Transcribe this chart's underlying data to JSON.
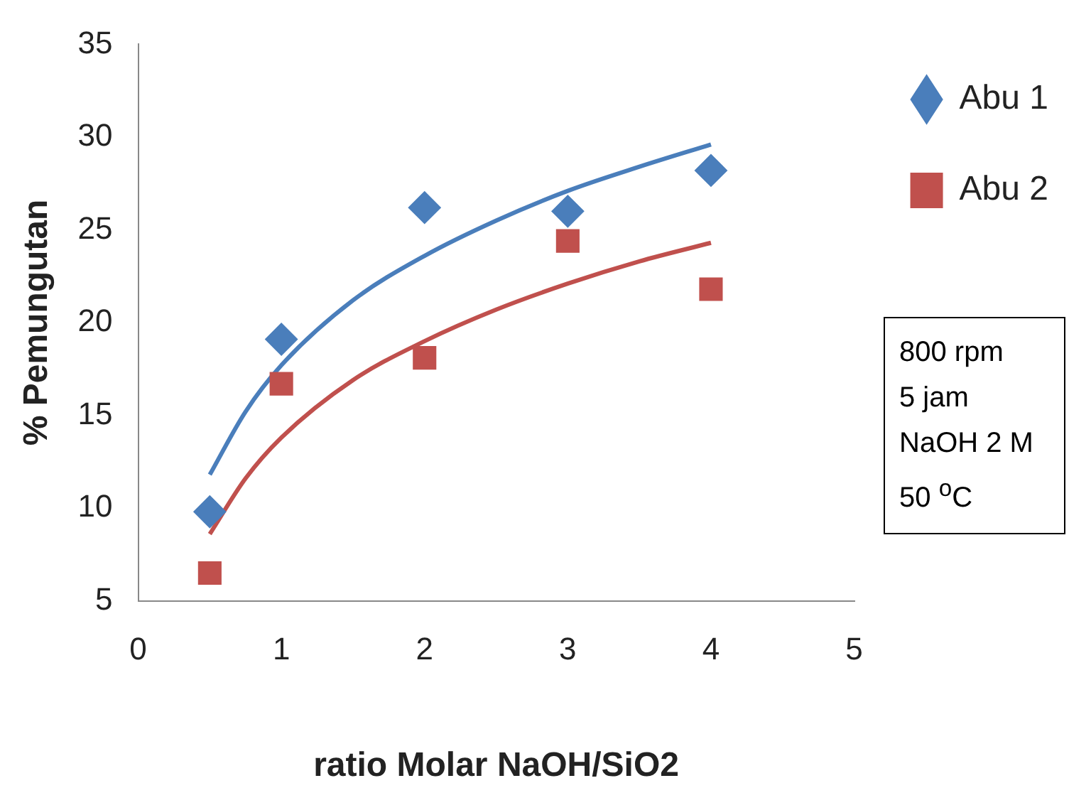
{
  "chart_data": {
    "type": "scatter",
    "xlabel": "ratio Molar NaOH/SiO2",
    "ylabel": "% Pemungutan",
    "xlim": [
      0,
      5
    ],
    "xticks": [
      0,
      1,
      2,
      3,
      4,
      5
    ],
    "ylim": [
      5,
      35
    ],
    "yticks": [
      5,
      10,
      15,
      20,
      25,
      30,
      35
    ],
    "grid": false,
    "legend": "right",
    "series": [
      {
        "name": "Abu 1",
        "color": "#4a7ebb",
        "marker": "diamond",
        "x": [
          0.5,
          1,
          2,
          3,
          4
        ],
        "values": [
          9.8,
          19.1,
          26.2,
          26.0,
          28.2
        ]
      },
      {
        "name": "Abu 2",
        "color": "#c0504d",
        "marker": "square",
        "x": [
          0.5,
          1,
          2,
          3,
          4
        ],
        "values": [
          6.5,
          16.7,
          18.1,
          24.4,
          21.8
        ]
      },
      {
        "type": "line",
        "color": "#4a7ebb",
        "marker": "none",
        "x": [
          0.5,
          0.75,
          1,
          1.5,
          2,
          2.5,
          3,
          3.5,
          4
        ],
        "values": [
          11.8,
          15.2,
          17.7,
          21.2,
          23.6,
          25.5,
          27.1,
          28.4,
          29.6
        ]
      },
      {
        "type": "line",
        "color": "#c0504d",
        "marker": "none",
        "x": [
          0.5,
          0.75,
          1,
          1.5,
          2,
          2.5,
          3,
          3.5,
          4
        ],
        "values": [
          8.6,
          11.6,
          13.8,
          16.9,
          19.0,
          20.7,
          22.1,
          23.3,
          24.3
        ]
      }
    ],
    "annotations": [
      "800 rpm",
      "5 jam",
      "NaOH 2 M",
      "50 $^{o}$C"
    ]
  }
}
